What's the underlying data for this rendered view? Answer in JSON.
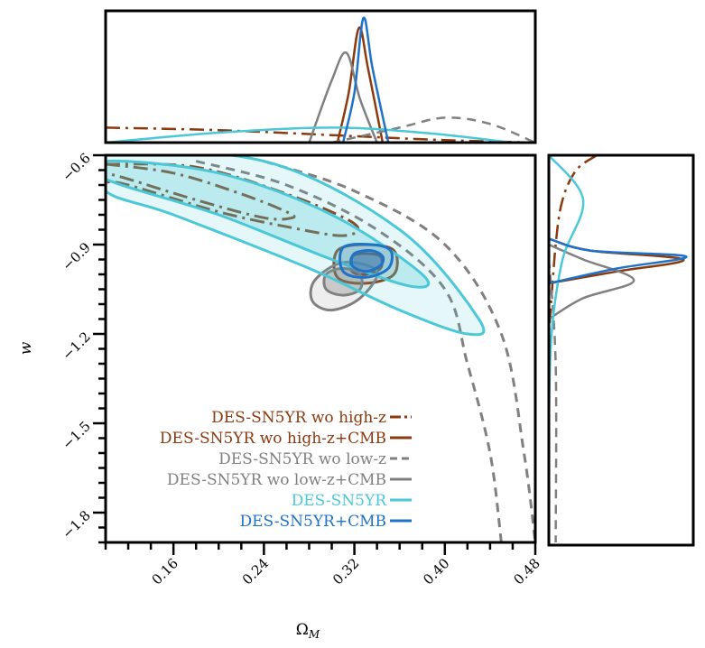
{
  "chart_data": {
    "type": "contour",
    "xlabel": "Ω",
    "xlabel_sub": "M",
    "ylabel": "w",
    "xlim": [
      0.1,
      0.48
    ],
    "ylim": [
      -1.9,
      -0.6
    ],
    "xticks": [
      "0.16",
      "0.24",
      "0.32",
      "0.40",
      "0.48"
    ],
    "xtick_values": [
      0.16,
      0.24,
      0.32,
      0.4,
      0.48
    ],
    "yticks": [
      "−0.6",
      "−0.9",
      "−1.2",
      "−1.5",
      "−1.8"
    ],
    "ytick_values": [
      -0.6,
      -0.9,
      -1.2,
      -1.5,
      -1.8
    ],
    "legend_position": "lower-left",
    "series": [
      {
        "name": "DES-SN5YR wo high-z",
        "color": "#8B3A0F",
        "linestyle": "dashdot",
        "contour_68": [
          [
            0.1,
            -0.63
          ],
          [
            0.16,
            -0.66
          ],
          [
            0.22,
            -0.73
          ],
          [
            0.26,
            -0.79
          ],
          [
            0.265,
            -0.81
          ],
          [
            0.24,
            -0.81
          ],
          [
            0.18,
            -0.75
          ],
          [
            0.12,
            -0.68
          ],
          [
            0.1,
            -0.66
          ]
        ],
        "contour_95": [
          [
            0.1,
            -0.63
          ],
          [
            0.18,
            -0.64
          ],
          [
            0.26,
            -0.73
          ],
          [
            0.32,
            -0.83
          ],
          [
            0.31,
            -0.87
          ],
          [
            0.26,
            -0.84
          ],
          [
            0.2,
            -0.79
          ],
          [
            0.12,
            -0.7
          ],
          [
            0.1,
            -0.69
          ]
        ],
        "omega_m_posterior": [
          [
            0.1,
            0.12
          ],
          [
            0.2,
            0.1
          ],
          [
            0.3,
            0.06
          ],
          [
            0.4,
            0.02
          ],
          [
            0.48,
            0.0
          ]
        ],
        "w_posterior": [
          [
            -0.6,
            0.35
          ],
          [
            -0.65,
            0.2
          ],
          [
            -0.75,
            0.1
          ],
          [
            -0.9,
            0.05
          ],
          [
            -1.2,
            0.0
          ]
        ]
      },
      {
        "name": "DES-SN5YR wo high-z+CMB",
        "color": "#8B3A0F",
        "linestyle": "solid",
        "center": [
          0.327,
          -0.96
        ],
        "contour_68": [
          [
            0.318,
            -0.94
          ],
          [
            0.33,
            -0.93
          ],
          [
            0.343,
            -0.94
          ],
          [
            0.343,
            -0.98
          ],
          [
            0.33,
            -1.0
          ],
          [
            0.318,
            -0.99
          ]
        ],
        "contour_95": [
          [
            0.305,
            -0.92
          ],
          [
            0.33,
            -0.9
          ],
          [
            0.355,
            -0.92
          ],
          [
            0.355,
            -1.0
          ],
          [
            0.33,
            -1.03
          ],
          [
            0.305,
            -1.01
          ]
        ],
        "omega_m_posterior": [
          [
            0.305,
            0.0
          ],
          [
            0.315,
            0.4
          ],
          [
            0.324,
            0.92
          ],
          [
            0.332,
            0.6
          ],
          [
            0.345,
            0.0
          ]
        ],
        "w_posterior": [
          [
            -0.88,
            0.0
          ],
          [
            -0.92,
            0.3
          ],
          [
            -0.95,
            0.98
          ],
          [
            -0.99,
            0.5
          ],
          [
            -1.03,
            0.0
          ]
        ]
      },
      {
        "name": "DES-SN5YR wo low-z",
        "color": "#808080",
        "linestyle": "dashed",
        "contour_68": [
          [
            0.18,
            -0.62
          ],
          [
            0.26,
            -0.7
          ],
          [
            0.34,
            -0.85
          ],
          [
            0.4,
            -1.05
          ],
          [
            0.42,
            -1.3
          ],
          [
            0.44,
            -1.6
          ],
          [
            0.45,
            -1.9
          ]
        ],
        "contour_95": [
          [
            0.24,
            -0.62
          ],
          [
            0.32,
            -0.72
          ],
          [
            0.4,
            -0.9
          ],
          [
            0.45,
            -1.2
          ],
          [
            0.47,
            -1.6
          ],
          [
            0.48,
            -1.9
          ]
        ],
        "omega_m_posterior": [
          [
            0.3,
            0.0
          ],
          [
            0.36,
            0.12
          ],
          [
            0.4,
            0.2
          ],
          [
            0.44,
            0.15
          ],
          [
            0.48,
            0.0
          ]
        ],
        "w_posterior": [
          [
            -0.95,
            0.0
          ],
          [
            -1.3,
            0.05
          ],
          [
            -1.9,
            0.05
          ]
        ]
      },
      {
        "name": "DES-SN5YR wo low-z+CMB",
        "color": "#808080",
        "linestyle": "solid",
        "center": [
          0.31,
          -1.02
        ],
        "contour_68": [
          [
            0.295,
            -1.0
          ],
          [
            0.31,
            -0.98
          ],
          [
            0.325,
            -1.0
          ],
          [
            0.325,
            -1.05
          ],
          [
            0.31,
            -1.07
          ],
          [
            0.295,
            -1.05
          ]
        ],
        "contour_95": [
          [
            0.285,
            -1.02
          ],
          [
            0.31,
            -0.96
          ],
          [
            0.34,
            -0.99
          ],
          [
            0.325,
            -1.08
          ],
          [
            0.3,
            -1.12
          ],
          [
            0.283,
            -1.09
          ]
        ],
        "omega_m_posterior": [
          [
            0.28,
            0.0
          ],
          [
            0.3,
            0.5
          ],
          [
            0.313,
            0.72
          ],
          [
            0.325,
            0.35
          ],
          [
            0.34,
            0.0
          ]
        ],
        "w_posterior": [
          [
            -0.9,
            0.0
          ],
          [
            -0.95,
            0.25
          ],
          [
            -1.02,
            0.62
          ],
          [
            -1.08,
            0.25
          ],
          [
            -1.15,
            0.0
          ]
        ]
      },
      {
        "name": "DES-SN5YR",
        "color": "#4BC8D8",
        "linestyle": "solid",
        "filled": true,
        "contour_68": [
          [
            0.1,
            -0.62
          ],
          [
            0.2,
            -0.66
          ],
          [
            0.3,
            -0.8
          ],
          [
            0.38,
            -1.0
          ],
          [
            0.37,
            -1.04
          ],
          [
            0.3,
            -0.95
          ],
          [
            0.2,
            -0.8
          ],
          [
            0.1,
            -0.68
          ]
        ],
        "contour_95": [
          [
            0.1,
            -0.6
          ],
          [
            0.24,
            -0.62
          ],
          [
            0.36,
            -0.85
          ],
          [
            0.43,
            -1.15
          ],
          [
            0.42,
            -1.2
          ],
          [
            0.36,
            -1.12
          ],
          [
            0.28,
            -0.98
          ],
          [
            0.16,
            -0.8
          ],
          [
            0.1,
            -0.72
          ]
        ],
        "omega_m_posterior": [
          [
            0.1,
            0.0
          ],
          [
            0.2,
            0.08
          ],
          [
            0.3,
            0.12
          ],
          [
            0.38,
            0.08
          ],
          [
            0.46,
            0.0
          ]
        ],
        "w_posterior": [
          [
            -0.6,
            0.0
          ],
          [
            -0.75,
            0.25
          ],
          [
            -0.95,
            0.1
          ],
          [
            -1.2,
            0.02
          ],
          [
            -1.5,
            0.0
          ]
        ]
      },
      {
        "name": "DES-SN5YR+CMB",
        "color": "#1E73C8",
        "linestyle": "solid",
        "center": [
          0.33,
          -0.95
        ],
        "contour_68": [
          [
            0.32,
            -0.93
          ],
          [
            0.335,
            -0.92
          ],
          [
            0.345,
            -0.94
          ],
          [
            0.343,
            -0.97
          ],
          [
            0.33,
            -0.99
          ],
          [
            0.318,
            -0.97
          ]
        ],
        "contour_95": [
          [
            0.31,
            -0.91
          ],
          [
            0.335,
            -0.9
          ],
          [
            0.352,
            -0.92
          ],
          [
            0.35,
            -0.98
          ],
          [
            0.33,
            -1.01
          ],
          [
            0.31,
            -0.99
          ]
        ],
        "omega_m_posterior": [
          [
            0.31,
            0.0
          ],
          [
            0.32,
            0.4
          ],
          [
            0.328,
            1.0
          ],
          [
            0.336,
            0.6
          ],
          [
            0.35,
            0.0
          ]
        ],
        "w_posterior": [
          [
            -0.88,
            0.0
          ],
          [
            -0.92,
            0.3
          ],
          [
            -0.94,
            1.0
          ],
          [
            -0.98,
            0.5
          ],
          [
            -1.03,
            0.0
          ]
        ]
      }
    ]
  }
}
